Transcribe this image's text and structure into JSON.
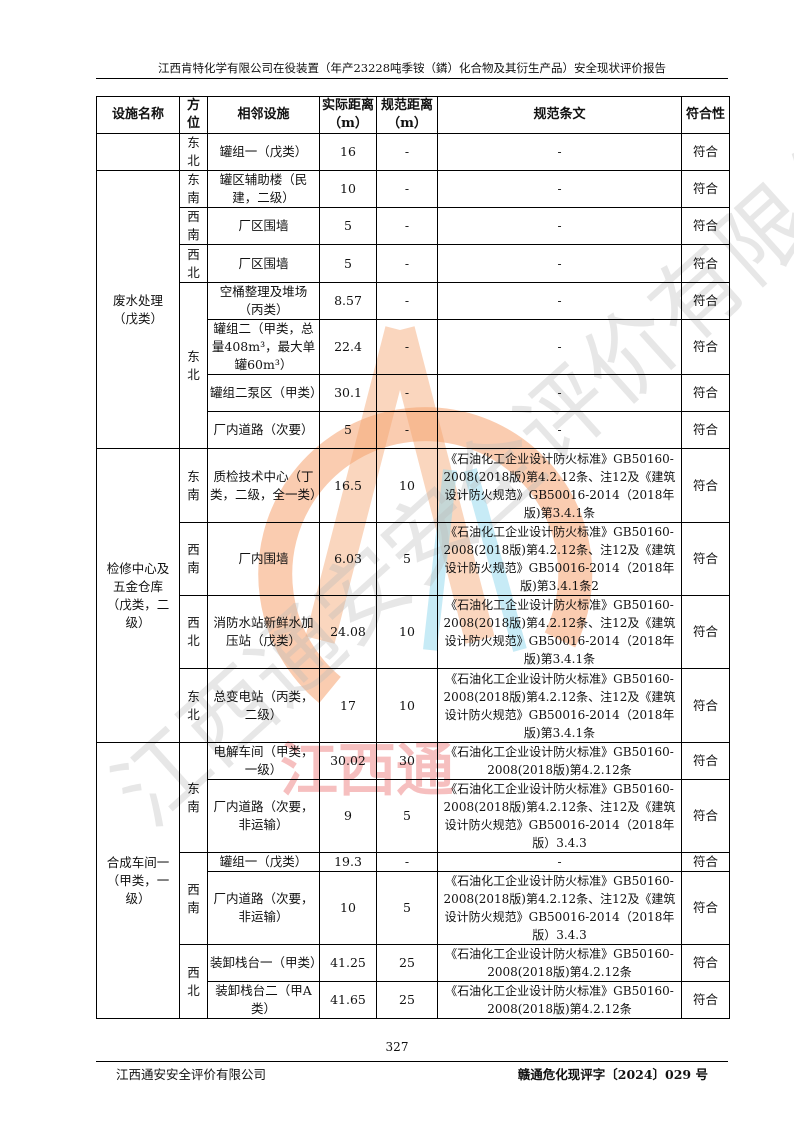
{
  "header": {
    "title": "江西肯特化学有限公司在役装置（年产23228吨季铵（鏻）化合物及其衍生产品）安全现状评价报告"
  },
  "table": {
    "headers": [
      "设施名称",
      "方位",
      "相邻设施",
      "实际距离（m）",
      "规范距离（m）",
      "规范条文",
      "符合性"
    ],
    "facilities": [
      {
        "name": "",
        "directions": [
          {
            "dir": "东北",
            "items": [
              {
                "adjacent": "罐组一（戊类）",
                "actual": "16",
                "standard": "-",
                "clause": "-",
                "compliance": "符合"
              }
            ]
          }
        ]
      },
      {
        "name": "废水处理（戊类）",
        "directions": [
          {
            "dir": "东南",
            "items": [
              {
                "adjacent": "罐区辅助楼（民建，二级）",
                "actual": "10",
                "standard": "-",
                "clause": "-",
                "compliance": "符合"
              }
            ]
          },
          {
            "dir": "西南",
            "items": [
              {
                "adjacent": "厂区围墙",
                "actual": "5",
                "standard": "-",
                "clause": "-",
                "compliance": "符合"
              }
            ]
          },
          {
            "dir": "西北",
            "items": [
              {
                "adjacent": "厂区围墙",
                "actual": "5",
                "standard": "-",
                "clause": "-",
                "compliance": "符合"
              }
            ]
          },
          {
            "dir": "东北",
            "items": [
              {
                "adjacent": "空桶整理及堆场（丙类）",
                "actual": "8.57",
                "standard": "-",
                "clause": "-",
                "compliance": "符合"
              },
              {
                "adjacent": "罐组二（甲类，总量408m³，最大单罐60m³）",
                "actual": "22.4",
                "standard": "-",
                "clause": "-",
                "compliance": "符合"
              },
              {
                "adjacent": "罐组二泵区（甲类）",
                "actual": "30.1",
                "standard": "-",
                "clause": "-",
                "compliance": "符合"
              },
              {
                "adjacent": "厂内道路（次要）",
                "actual": "5",
                "standard": "-",
                "clause": "-",
                "compliance": "符合"
              }
            ]
          }
        ]
      },
      {
        "name": "检修中心及五金仓库（戊类，二级）",
        "directions": [
          {
            "dir": "东南",
            "items": [
              {
                "adjacent": "质检技术中心（丁类，二级，全一类）",
                "actual": "16.5",
                "standard": "10",
                "clause": "《石油化工企业设计防火标准》GB50160-2008(2018版)第4.2.12条、注12及《建筑设计防火规范》GB50016-2014（2018年版)第3.4.1条",
                "compliance": "符合"
              }
            ]
          },
          {
            "dir": "西南",
            "items": [
              {
                "adjacent": "厂内围墙",
                "actual": "6.03",
                "standard": "5",
                "clause": "《石油化工企业设计防火标准》GB50160-2008(2018版)第4.2.12条、注12及《建筑设计防火规范》GB50016-2014（2018年版)第3.4.1条2",
                "compliance": "符合"
              }
            ]
          },
          {
            "dir": "西北",
            "items": [
              {
                "adjacent": "消防水站新鲜水加压站（戊类）",
                "actual": "24.08",
                "standard": "10",
                "clause": "《石油化工企业设计防火标准》GB50160-2008(2018版)第4.2.12条、注12及《建筑设计防火规范》GB50016-2014（2018年版)第3.4.1条",
                "compliance": "符合"
              }
            ]
          },
          {
            "dir": "东北",
            "items": [
              {
                "adjacent": "总变电站（丙类，二级）",
                "actual": "17",
                "standard": "10",
                "clause": "《石油化工企业设计防火标准》GB50160-2008(2018版)第4.2.12条、注12及《建筑设计防火规范》GB50016-2014（2018年版)第3.4.1条",
                "compliance": "符合"
              }
            ]
          }
        ]
      },
      {
        "name": "合成车间一（甲类，一级）",
        "directions": [
          {
            "dir": "东南",
            "items": [
              {
                "adjacent": "电解车间（甲类，一级）",
                "actual": "30.02",
                "standard": "30",
                "clause": "《石油化工企业设计防火标准》GB50160-2008(2018版)第4.2.12条",
                "compliance": "符合"
              },
              {
                "adjacent": "厂内道路（次要，非运输）",
                "actual": "9",
                "standard": "5",
                "clause": "《石油化工企业设计防火标准》GB50160-2008(2018版)第4.2.12条、注12及《建筑设计防火规范》GB50016-2014（2018年版）3.4.3",
                "compliance": "符合"
              }
            ]
          },
          {
            "dir": "西南",
            "items": [
              {
                "adjacent": "罐组一（戊类）",
                "actual": "19.3",
                "standard": "-",
                "clause": "-",
                "compliance": "符合"
              },
              {
                "adjacent": "厂内道路（次要，非运输）",
                "actual": "10",
                "standard": "5",
                "clause": "《石油化工企业设计防火标准》GB50160-2008(2018版)第4.2.12条、注12及《建筑设计防火规范》GB50016-2014（2018年版）3.4.3",
                "compliance": "符合"
              }
            ]
          },
          {
            "dir": "西北",
            "items": [
              {
                "adjacent": "装卸栈台一（甲类）",
                "actual": "41.25",
                "standard": "25",
                "clause": "《石油化工企业设计防火标准》GB50160-2008(2018版)第4.2.12条",
                "compliance": "符合"
              },
              {
                "adjacent": "装卸栈台二（甲A类）",
                "actual": "41.65",
                "standard": "25",
                "clause": "《石油化工企业设计防火标准》GB50160-2008(2018版)第4.2.12条",
                "compliance": "符合"
              }
            ]
          }
        ]
      }
    ]
  },
  "watermark": {
    "text": "江西通安安全评价有限公司",
    "text2": "江西通",
    "colors": {
      "orange": "#f5a36f",
      "cyan": "#8fd8ee",
      "red": "#e84b4b",
      "gray": "#cccccc"
    }
  },
  "footer": {
    "page_number": "327",
    "company": "江西通安安全评价有限公司",
    "doc_no": "赣通危化现评字〔2024〕029 号"
  }
}
